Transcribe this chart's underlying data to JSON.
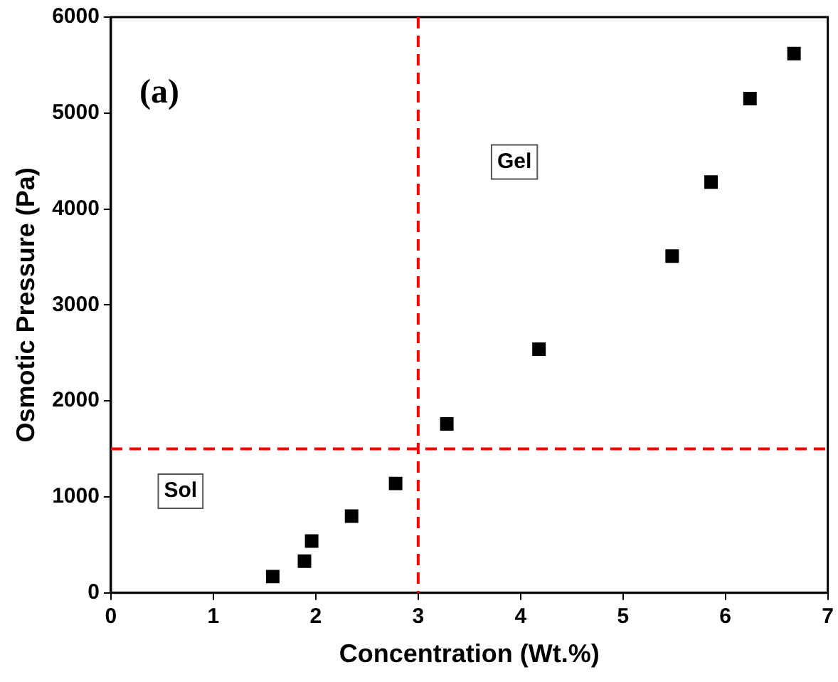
{
  "chart_data": {
    "type": "scatter",
    "xlabel": "Concentration (Wt.%)",
    "ylabel": "Osmotic Pressure (Pa)",
    "x": [
      1.58,
      1.89,
      1.96,
      2.35,
      2.78,
      3.28,
      4.18,
      5.48,
      5.86,
      6.24,
      6.67
    ],
    "series": [
      {
        "color": "#000000",
        "values": [
          170,
          330,
          540,
          800,
          1140,
          1760,
          2540,
          3510,
          4280,
          5150,
          5620
        ]
      }
    ],
    "xlim": [
      0,
      7
    ],
    "xticks": [
      0,
      1,
      2,
      3,
      4,
      5,
      6,
      7
    ],
    "ylim": [
      0,
      6000
    ],
    "yticks": [
      0,
      1000,
      2000,
      3000,
      4000,
      5000,
      6000
    ],
    "marker": "square",
    "grid": false,
    "legend": false,
    "ref_lines": [
      {
        "axis": "x",
        "value": 3,
        "color": "#ff0000",
        "line_style": "dashed"
      },
      {
        "axis": "y",
        "value": 1500,
        "color": "#ff0000",
        "line_style": "dashed"
      }
    ],
    "annotations": [
      "(a)",
      {
        "text": "Gel",
        "x": 3.94,
        "y": 4490
      },
      {
        "text": "Sol",
        "x": 0.68,
        "y": 1060
      }
    ]
  }
}
